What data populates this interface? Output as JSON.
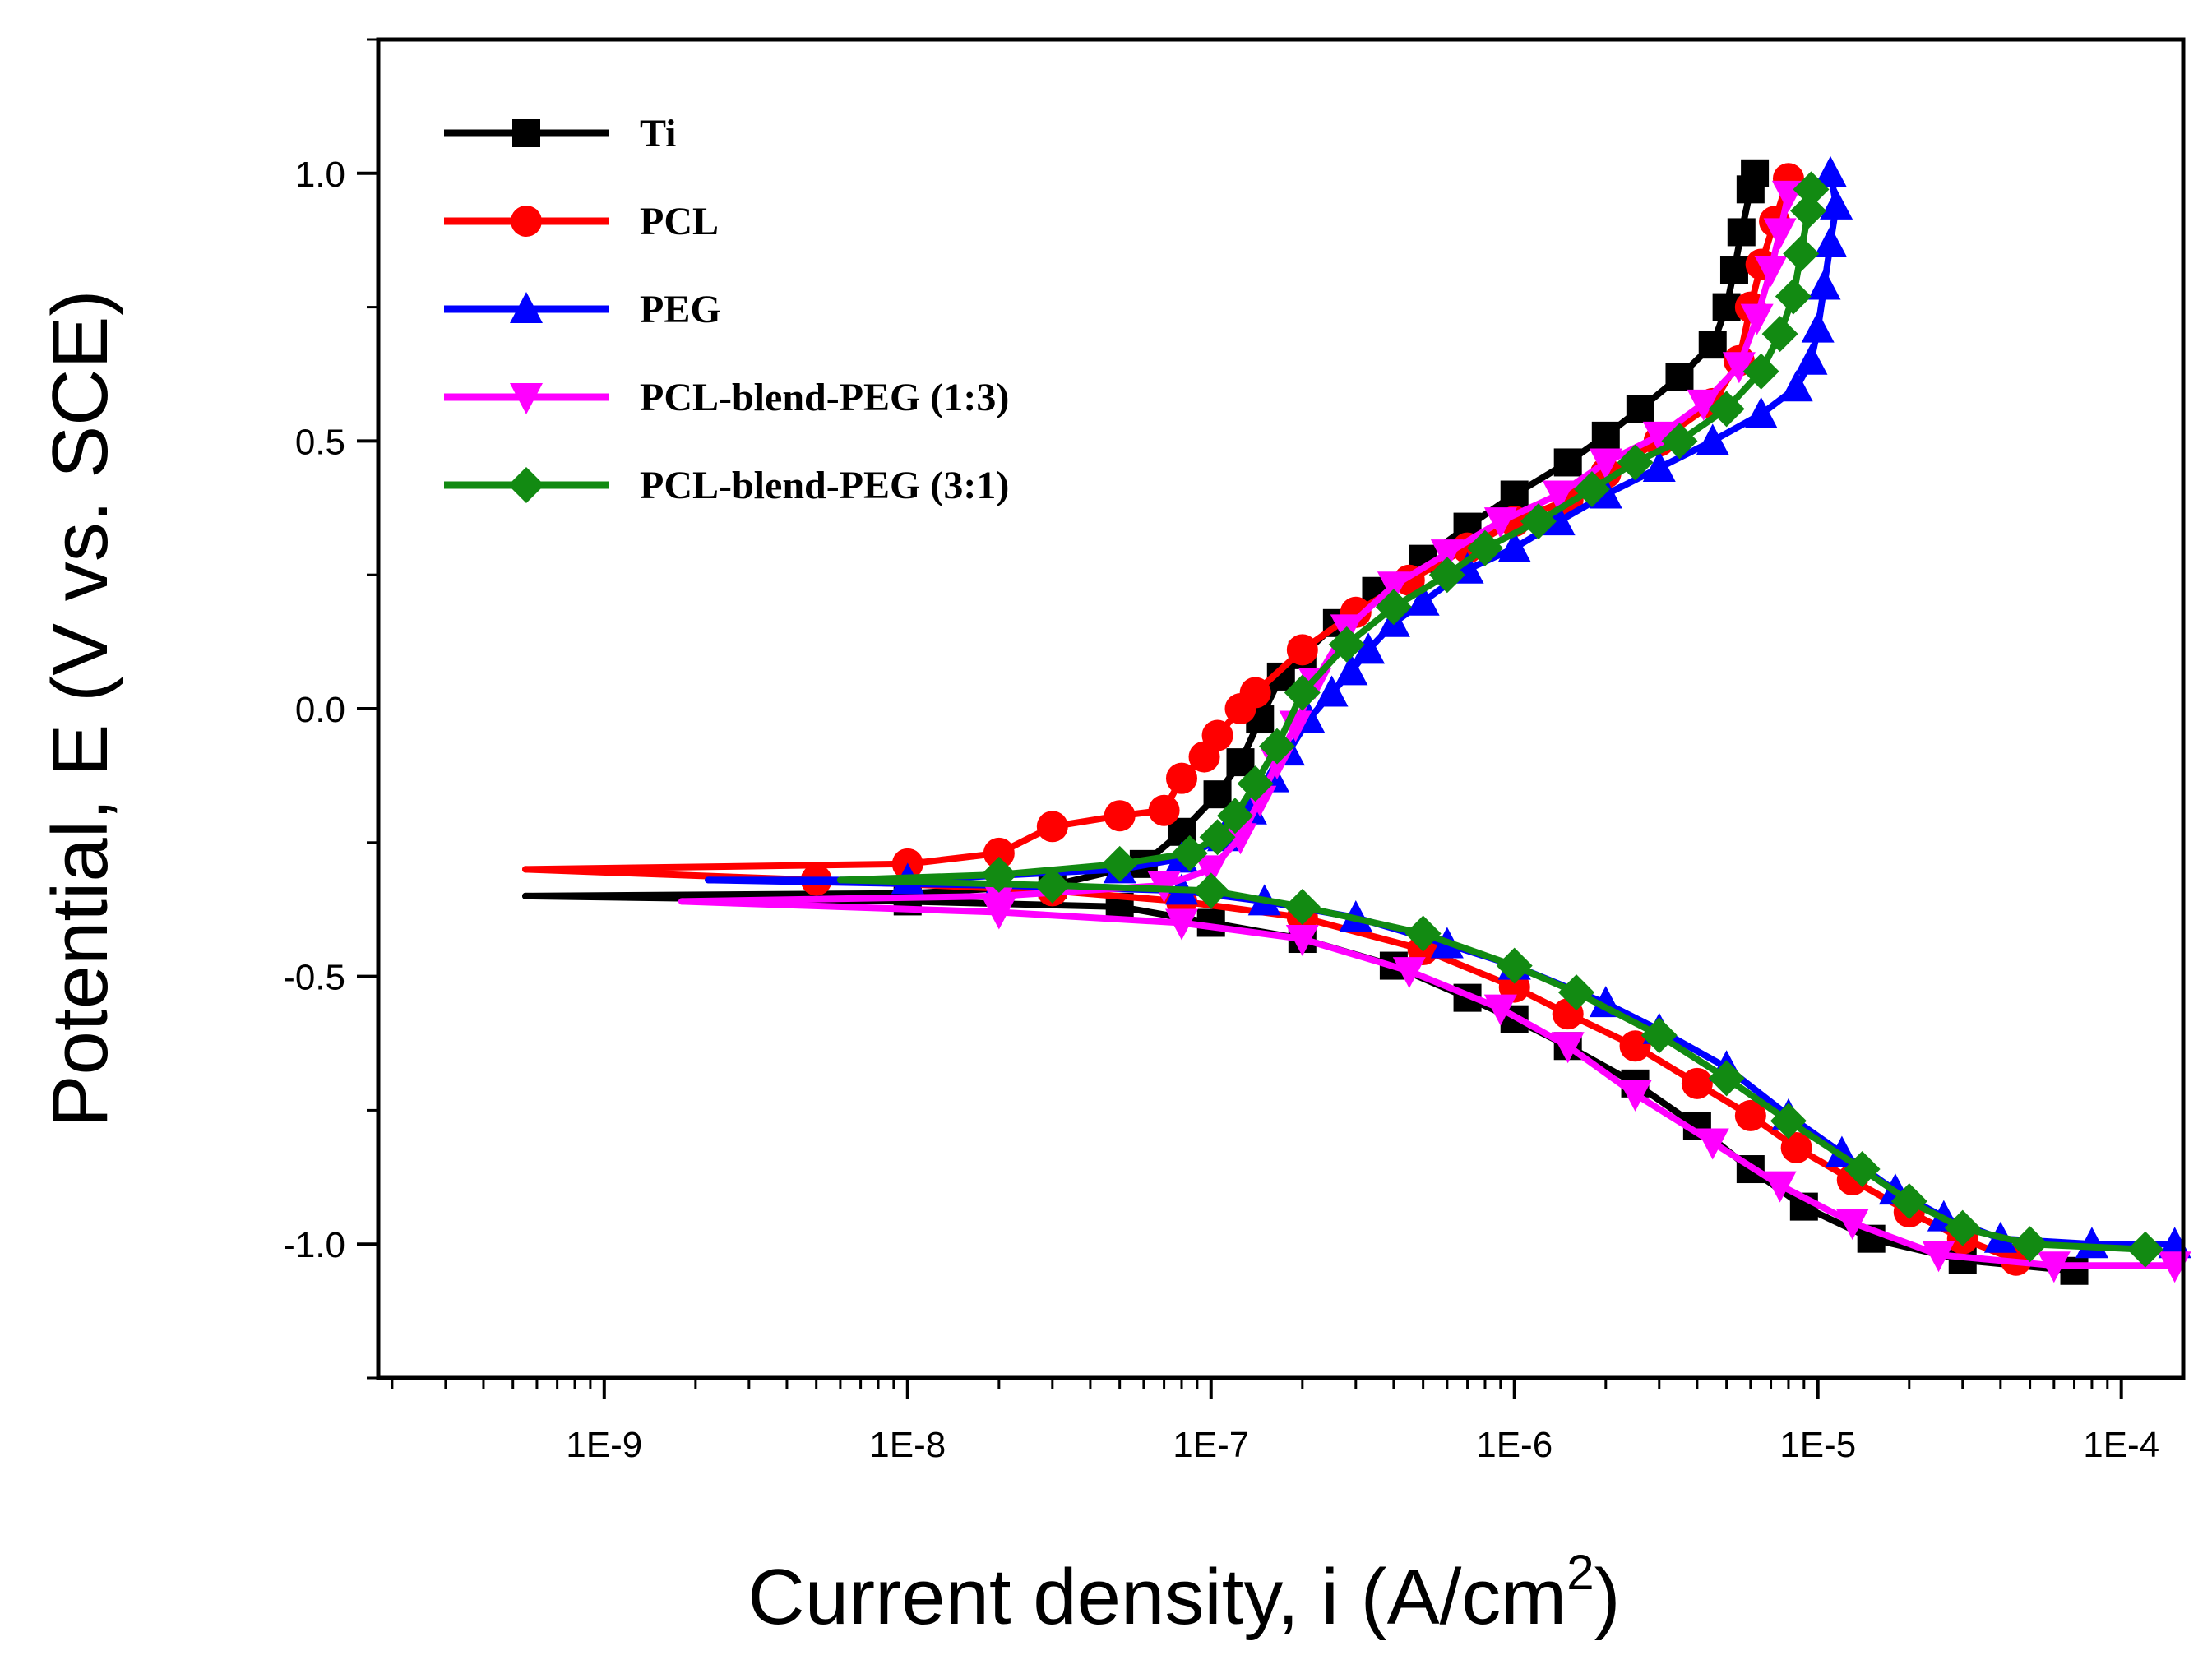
{
  "chart_data": {
    "type": "line",
    "title": "",
    "xlabel": "Current density, i (A/cm",
    "xlabel_sup": "2",
    "xlabel_close": ")",
    "ylabel": "Potential, E (V vs. SCE)",
    "xscale": "log",
    "xlim": [
      1.8e-10,
      0.00016
    ],
    "ylim": [
      -1.25,
      1.25
    ],
    "x_ticks": [
      1e-09,
      1e-08,
      1e-07,
      1e-06,
      1e-05,
      0.0001
    ],
    "x_tick_labels": [
      "1E-9",
      "1E-8",
      "1E-7",
      "1E-6",
      "1E-5",
      "1E-4"
    ],
    "y_ticks": [
      -1.0,
      -0.5,
      0.0,
      0.5,
      1.0
    ],
    "y_tick_labels": [
      "-1.0",
      "-0.5",
      "0.0",
      "0.5",
      "1.0"
    ],
    "legend_position": "top-left",
    "series": [
      {
        "name": "Ti",
        "color": "#000000",
        "marker": "square",
        "anodic": [
          [
            5.5e-10,
            -0.35
          ],
          [
            1e-08,
            -0.345
          ],
          [
            3e-08,
            -0.33
          ],
          [
            6e-08,
            -0.29
          ],
          [
            8e-08,
            -0.23
          ],
          [
            1.05e-07,
            -0.16
          ],
          [
            1.25e-07,
            -0.1
          ],
          [
            1.45e-07,
            -0.02
          ],
          [
            1.7e-07,
            0.06
          ],
          [
            2e-07,
            0.1
          ],
          [
            2.6e-07,
            0.16
          ],
          [
            3.5e-07,
            0.22
          ],
          [
            5e-07,
            0.28
          ],
          [
            7e-07,
            0.34
          ],
          [
            1e-06,
            0.4
          ],
          [
            1.5e-06,
            0.46
          ],
          [
            2e-06,
            0.51
          ],
          [
            2.6e-06,
            0.56
          ],
          [
            3.5e-06,
            0.62
          ],
          [
            4.5e-06,
            0.68
          ],
          [
            5e-06,
            0.75
          ],
          [
            5.3e-06,
            0.82
          ],
          [
            5.6e-06,
            0.89
          ],
          [
            6e-06,
            0.97
          ],
          [
            6.2e-06,
            1.0
          ]
        ],
        "cathodic": [
          [
            5.5e-10,
            -0.35
          ],
          [
            1e-08,
            -0.36
          ],
          [
            5e-08,
            -0.37
          ],
          [
            1e-07,
            -0.4
          ],
          [
            2e-07,
            -0.43
          ],
          [
            4e-07,
            -0.48
          ],
          [
            7e-07,
            -0.54
          ],
          [
            1e-06,
            -0.58
          ],
          [
            1.5e-06,
            -0.63
          ],
          [
            2.5e-06,
            -0.7
          ],
          [
            4e-06,
            -0.78
          ],
          [
            6e-06,
            -0.86
          ],
          [
            9e-06,
            -0.93
          ],
          [
            1.5e-05,
            -0.99
          ],
          [
            3e-05,
            -1.03
          ],
          [
            7e-05,
            -1.05
          ]
        ]
      },
      {
        "name": "PCL",
        "color": "#ff0000",
        "marker": "circle",
        "anodic": [
          [
            5.5e-10,
            -0.3
          ],
          [
            1e-08,
            -0.29
          ],
          [
            2e-08,
            -0.27
          ],
          [
            3e-08,
            -0.22
          ],
          [
            5e-08,
            -0.2
          ],
          [
            7e-08,
            -0.19
          ],
          [
            8e-08,
            -0.13
          ],
          [
            9.5e-08,
            -0.09
          ],
          [
            1.05e-07,
            -0.05
          ],
          [
            1.25e-07,
            0.0
          ],
          [
            1.4e-07,
            0.03
          ],
          [
            2e-07,
            0.11
          ],
          [
            3e-07,
            0.18
          ],
          [
            4.5e-07,
            0.24
          ],
          [
            7e-07,
            0.3
          ],
          [
            1e-06,
            0.35
          ],
          [
            1.5e-06,
            0.39
          ],
          [
            2e-06,
            0.44
          ],
          [
            3e-06,
            0.5
          ],
          [
            4.5e-06,
            0.57
          ],
          [
            5.5e-06,
            0.65
          ],
          [
            6e-06,
            0.75
          ],
          [
            6.5e-06,
            0.83
          ],
          [
            7.2e-06,
            0.91
          ],
          [
            8e-06,
            0.99
          ]
        ],
        "cathodic": [
          [
            5.5e-10,
            -0.3
          ],
          [
            5e-09,
            -0.32
          ],
          [
            3e-08,
            -0.34
          ],
          [
            8e-08,
            -0.36
          ],
          [
            2e-07,
            -0.39
          ],
          [
            5e-07,
            -0.45
          ],
          [
            1e-06,
            -0.52
          ],
          [
            1.5e-06,
            -0.57
          ],
          [
            2.5e-06,
            -0.63
          ],
          [
            4e-06,
            -0.7
          ],
          [
            6e-06,
            -0.76
          ],
          [
            8.5e-06,
            -0.82
          ],
          [
            1.3e-05,
            -0.88
          ],
          [
            2e-05,
            -0.94
          ],
          [
            3e-05,
            -0.99
          ],
          [
            4.5e-05,
            -1.03
          ]
        ]
      },
      {
        "name": "PEG",
        "color": "#0000ff",
        "marker": "triangle-up",
        "anodic": [
          [
            2.2e-09,
            -0.32
          ],
          [
            1e-08,
            -0.32
          ],
          [
            5e-08,
            -0.3
          ],
          [
            8e-08,
            -0.28
          ],
          [
            1.1e-07,
            -0.24
          ],
          [
            1.35e-07,
            -0.19
          ],
          [
            1.6e-07,
            -0.13
          ],
          [
            1.8e-07,
            -0.08
          ],
          [
            2.1e-07,
            -0.02
          ],
          [
            2.5e-07,
            0.03
          ],
          [
            2.9e-07,
            0.07
          ],
          [
            3.3e-07,
            0.11
          ],
          [
            4e-07,
            0.16
          ],
          [
            5e-07,
            0.2
          ],
          [
            7e-07,
            0.26
          ],
          [
            1e-06,
            0.3
          ],
          [
            1.4e-06,
            0.35
          ],
          [
            2e-06,
            0.4
          ],
          [
            3e-06,
            0.45
          ],
          [
            4.5e-06,
            0.5
          ],
          [
            6.5e-06,
            0.55
          ],
          [
            8.5e-06,
            0.6
          ],
          [
            9.5e-06,
            0.65
          ],
          [
            1e-05,
            0.71
          ],
          [
            1.05e-05,
            0.79
          ],
          [
            1.1e-05,
            0.87
          ],
          [
            1.15e-05,
            0.94
          ],
          [
            1.1e-05,
            1.0
          ]
        ],
        "cathodic": [
          [
            2.2e-09,
            -0.32
          ],
          [
            2e-08,
            -0.33
          ],
          [
            8e-08,
            -0.34
          ],
          [
            1.5e-07,
            -0.36
          ],
          [
            3e-07,
            -0.39
          ],
          [
            6e-07,
            -0.44
          ],
          [
            1e-06,
            -0.48
          ],
          [
            2e-06,
            -0.55
          ],
          [
            3e-06,
            -0.6
          ],
          [
            5e-06,
            -0.67
          ],
          [
            8e-06,
            -0.76
          ],
          [
            1.2e-05,
            -0.83
          ],
          [
            1.8e-05,
            -0.9
          ],
          [
            2.6e-05,
            -0.95
          ],
          [
            4e-05,
            -0.99
          ],
          [
            8e-05,
            -1.0
          ],
          [
            0.00015,
            -1.0
          ]
        ]
      },
      {
        "name": "PCL-blend-PEG (1:3)",
        "color": "#ff00ff",
        "marker": "triangle-down",
        "anodic": [
          [
            1.8e-09,
            -0.36
          ],
          [
            2e-08,
            -0.35
          ],
          [
            7e-08,
            -0.33
          ],
          [
            1e-07,
            -0.3
          ],
          [
            1.25e-07,
            -0.24
          ],
          [
            1.45e-07,
            -0.17
          ],
          [
            1.65e-07,
            -0.1
          ],
          [
            1.9e-07,
            -0.03
          ],
          [
            2.2e-07,
            0.05
          ],
          [
            2.8e-07,
            0.15
          ],
          [
            4e-07,
            0.23
          ],
          [
            6e-07,
            0.29
          ],
          [
            9e-07,
            0.35
          ],
          [
            1.4e-06,
            0.4
          ],
          [
            2e-06,
            0.46
          ],
          [
            3e-06,
            0.51
          ],
          [
            4.2e-06,
            0.57
          ],
          [
            5.5e-06,
            0.64
          ],
          [
            6.3e-06,
            0.73
          ],
          [
            7e-06,
            0.82
          ],
          [
            7.5e-06,
            0.89
          ],
          [
            8e-06,
            0.96
          ]
        ],
        "cathodic": [
          [
            1.8e-09,
            -0.36
          ],
          [
            2e-08,
            -0.38
          ],
          [
            8e-08,
            -0.4
          ],
          [
            2e-07,
            -0.43
          ],
          [
            4.5e-07,
            -0.49
          ],
          [
            9e-07,
            -0.56
          ],
          [
            1.5e-06,
            -0.63
          ],
          [
            2.5e-06,
            -0.72
          ],
          [
            4.5e-06,
            -0.81
          ],
          [
            7.5e-06,
            -0.89
          ],
          [
            1.3e-05,
            -0.96
          ],
          [
            2.5e-05,
            -1.02
          ],
          [
            6e-05,
            -1.04
          ],
          [
            0.00015,
            -1.04
          ]
        ]
      },
      {
        "name": "PCL-blend-PEG (3:1)",
        "color": "#128a12",
        "marker": "diamond",
        "anodic": [
          [
            6e-09,
            -0.32
          ],
          [
            2e-08,
            -0.31
          ],
          [
            5e-08,
            -0.29
          ],
          [
            8.5e-08,
            -0.27
          ],
          [
            1.05e-07,
            -0.24
          ],
          [
            1.2e-07,
            -0.2
          ],
          [
            1.4e-07,
            -0.14
          ],
          [
            1.65e-07,
            -0.07
          ],
          [
            2e-07,
            0.03
          ],
          [
            2.8e-07,
            0.12
          ],
          [
            4e-07,
            0.19
          ],
          [
            6e-07,
            0.25
          ],
          [
            8e-07,
            0.3
          ],
          [
            1.2e-06,
            0.35
          ],
          [
            1.8e-06,
            0.41
          ],
          [
            2.5e-06,
            0.46
          ],
          [
            3.5e-06,
            0.5
          ],
          [
            5e-06,
            0.56
          ],
          [
            6.5e-06,
            0.63
          ],
          [
            7.5e-06,
            0.7
          ],
          [
            8.3e-06,
            0.77
          ],
          [
            8.8e-06,
            0.85
          ],
          [
            9.3e-06,
            0.93
          ],
          [
            9.5e-06,
            0.97
          ]
        ],
        "cathodic": [
          [
            6e-09,
            -0.32
          ],
          [
            3e-08,
            -0.33
          ],
          [
            1e-07,
            -0.34
          ],
          [
            2e-07,
            -0.37
          ],
          [
            5e-07,
            -0.42
          ],
          [
            1e-06,
            -0.48
          ],
          [
            1.6e-06,
            -0.53
          ],
          [
            3e-06,
            -0.61
          ],
          [
            5e-06,
            -0.69
          ],
          [
            8e-06,
            -0.77
          ],
          [
            1.4e-05,
            -0.86
          ],
          [
            2e-05,
            -0.92
          ],
          [
            3e-05,
            -0.97
          ],
          [
            5e-05,
            -1.0
          ],
          [
            0.00012,
            -1.01
          ]
        ]
      }
    ]
  }
}
